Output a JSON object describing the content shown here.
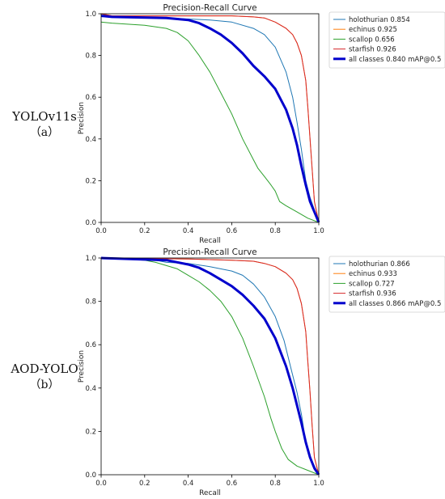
{
  "rows": [
    {
      "label": "YOLOv11s",
      "sublabel": "（a）"
    },
    {
      "label": "AOD-YOLO",
      "sublabel": "（b）"
    }
  ],
  "chart_data": [
    {
      "type": "line",
      "title": "Precision-Recall Curve",
      "xlabel": "Recall",
      "ylabel": "Precision",
      "xlim": [
        0,
        1
      ],
      "ylim": [
        0,
        1
      ],
      "xticks": [
        "0.0",
        "0.2",
        "0.4",
        "0.6",
        "0.8",
        "1.0"
      ],
      "yticks": [
        "0.0",
        "0.2",
        "0.4",
        "0.6",
        "0.8",
        "1.0"
      ],
      "grid": false,
      "legend_position": "outside-right",
      "series": [
        {
          "name": "holothurian 0.854",
          "color": "#1f77b4",
          "linewidth": 1,
          "x": [
            0,
            0.05,
            0.3,
            0.5,
            0.6,
            0.7,
            0.75,
            0.8,
            0.85,
            0.88,
            0.9,
            0.92,
            0.94,
            0.96,
            0.98,
            1.0
          ],
          "y": [
            1.0,
            0.985,
            0.98,
            0.97,
            0.96,
            0.93,
            0.9,
            0.84,
            0.72,
            0.6,
            0.48,
            0.35,
            0.2,
            0.12,
            0.06,
            0.0
          ]
        },
        {
          "name": "echinus 0.925",
          "color": "#ff7f0e",
          "linewidth": 1,
          "x": [
            0,
            0.05,
            0.4,
            0.6,
            0.7,
            0.75,
            0.8,
            0.85,
            0.88,
            0.9,
            0.92,
            0.94,
            0.95,
            0.96,
            0.97,
            0.98,
            1.0
          ],
          "y": [
            1.0,
            0.99,
            0.99,
            0.99,
            0.985,
            0.98,
            0.96,
            0.93,
            0.9,
            0.86,
            0.8,
            0.68,
            0.55,
            0.4,
            0.25,
            0.1,
            0.0
          ]
        },
        {
          "name": "scallop 0.656",
          "color": "#2ca02c",
          "linewidth": 1,
          "x": [
            0,
            0.05,
            0.2,
            0.3,
            0.35,
            0.4,
            0.45,
            0.5,
            0.55,
            0.6,
            0.65,
            0.7,
            0.72,
            0.75,
            0.78,
            0.8,
            0.82,
            0.85,
            0.9,
            0.95,
            1.0
          ],
          "y": [
            0.96,
            0.955,
            0.945,
            0.93,
            0.91,
            0.87,
            0.8,
            0.72,
            0.62,
            0.52,
            0.4,
            0.3,
            0.26,
            0.22,
            0.18,
            0.15,
            0.1,
            0.08,
            0.05,
            0.02,
            0.0
          ]
        },
        {
          "name": "starfish 0.926",
          "color": "#d62728",
          "linewidth": 1,
          "x": [
            0,
            0.05,
            0.4,
            0.6,
            0.7,
            0.75,
            0.8,
            0.85,
            0.88,
            0.9,
            0.92,
            0.94,
            0.95,
            0.96,
            0.97,
            0.98,
            1.0
          ],
          "y": [
            1.0,
            0.99,
            0.99,
            0.99,
            0.985,
            0.98,
            0.96,
            0.93,
            0.9,
            0.86,
            0.8,
            0.68,
            0.55,
            0.4,
            0.25,
            0.1,
            0.0
          ]
        },
        {
          "name": "all classes 0.840 mAP@0.5",
          "color": "#0000cc",
          "linewidth": 3,
          "x": [
            0,
            0.05,
            0.3,
            0.4,
            0.45,
            0.5,
            0.55,
            0.6,
            0.65,
            0.7,
            0.75,
            0.8,
            0.85,
            0.88,
            0.9,
            0.92,
            0.94,
            0.96,
            0.98,
            1.0
          ],
          "y": [
            0.99,
            0.985,
            0.98,
            0.97,
            0.955,
            0.93,
            0.9,
            0.86,
            0.81,
            0.75,
            0.7,
            0.64,
            0.54,
            0.45,
            0.37,
            0.27,
            0.18,
            0.1,
            0.05,
            0.0
          ]
        }
      ]
    },
    {
      "type": "line",
      "title": "Precision-Recall Curve",
      "xlabel": "Recall",
      "ylabel": "Precision",
      "xlim": [
        0,
        1
      ],
      "ylim": [
        0,
        1
      ],
      "xticks": [
        "0.0",
        "0.2",
        "0.4",
        "0.6",
        "0.8",
        "1.0"
      ],
      "yticks": [
        "0.0",
        "0.2",
        "0.4",
        "0.6",
        "0.8",
        "1.0"
      ],
      "grid": false,
      "legend_position": "outside-right",
      "series": [
        {
          "name": "holothurian 0.866",
          "color": "#1f77b4",
          "linewidth": 1,
          "x": [
            0,
            0.25,
            0.3,
            0.4,
            0.5,
            0.6,
            0.65,
            0.7,
            0.75,
            0.8,
            0.84,
            0.87,
            0.9,
            0.92,
            0.94,
            0.96,
            1.0
          ],
          "y": [
            1.0,
            0.99,
            0.98,
            0.975,
            0.96,
            0.94,
            0.92,
            0.88,
            0.82,
            0.73,
            0.62,
            0.5,
            0.38,
            0.28,
            0.15,
            0.08,
            0.0
          ]
        },
        {
          "name": "echinus 0.933",
          "color": "#ff7f0e",
          "linewidth": 1,
          "x": [
            0,
            0.4,
            0.6,
            0.7,
            0.75,
            0.8,
            0.85,
            0.88,
            0.9,
            0.92,
            0.94,
            0.95,
            0.96,
            0.97,
            0.98,
            1.0
          ],
          "y": [
            1.0,
            0.995,
            0.99,
            0.985,
            0.975,
            0.96,
            0.93,
            0.9,
            0.86,
            0.79,
            0.66,
            0.52,
            0.38,
            0.22,
            0.08,
            0.0
          ]
        },
        {
          "name": "scallop 0.727",
          "color": "#2ca02c",
          "linewidth": 1,
          "x": [
            0,
            0.2,
            0.25,
            0.3,
            0.35,
            0.4,
            0.45,
            0.5,
            0.55,
            0.6,
            0.65,
            0.7,
            0.75,
            0.78,
            0.8,
            0.83,
            0.86,
            0.9,
            0.95,
            1.0
          ],
          "y": [
            1.0,
            0.99,
            0.98,
            0.965,
            0.95,
            0.92,
            0.89,
            0.85,
            0.8,
            0.73,
            0.63,
            0.5,
            0.36,
            0.26,
            0.2,
            0.12,
            0.07,
            0.04,
            0.02,
            0.0
          ]
        },
        {
          "name": "starfish 0.936",
          "color": "#d62728",
          "linewidth": 1,
          "x": [
            0,
            0.4,
            0.6,
            0.7,
            0.75,
            0.8,
            0.85,
            0.88,
            0.9,
            0.92,
            0.94,
            0.95,
            0.96,
            0.97,
            0.98,
            1.0
          ],
          "y": [
            1.0,
            0.995,
            0.99,
            0.985,
            0.975,
            0.96,
            0.93,
            0.9,
            0.86,
            0.79,
            0.66,
            0.52,
            0.38,
            0.22,
            0.08,
            0.0
          ]
        },
        {
          "name": "all classes 0.866 mAP@0.5",
          "color": "#0000cc",
          "linewidth": 3,
          "x": [
            0,
            0.3,
            0.4,
            0.45,
            0.5,
            0.55,
            0.6,
            0.65,
            0.7,
            0.75,
            0.8,
            0.85,
            0.88,
            0.9,
            0.92,
            0.94,
            0.96,
            0.98,
            1.0
          ],
          "y": [
            1.0,
            0.99,
            0.97,
            0.955,
            0.93,
            0.9,
            0.87,
            0.83,
            0.78,
            0.72,
            0.63,
            0.5,
            0.4,
            0.32,
            0.24,
            0.15,
            0.08,
            0.03,
            0.0
          ]
        }
      ]
    }
  ]
}
